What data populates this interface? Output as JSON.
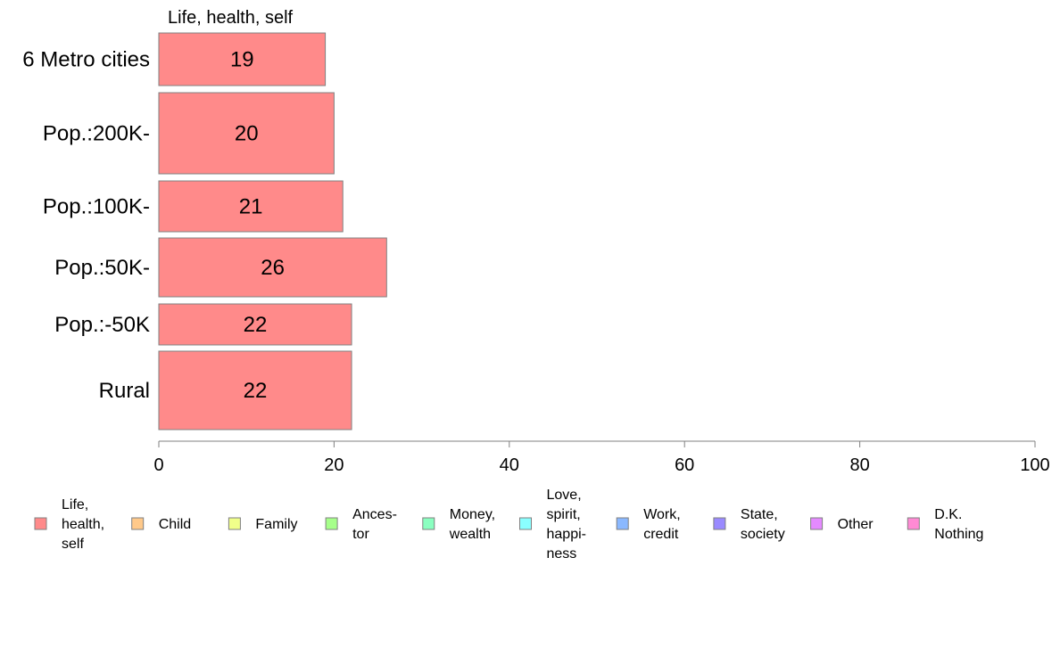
{
  "chart_data": {
    "type": "bar",
    "orientation": "horizontal",
    "title": "",
    "series_title": "Life, health, self",
    "categories": [
      "6 Metro cities",
      "Pop.:200K-",
      "Pop.:100K-",
      "Pop.:50K-",
      "Pop.:-50K",
      "Rural"
    ],
    "series": [
      {
        "name": "Life, health, self",
        "values": [
          19,
          20,
          21,
          26,
          22,
          22
        ],
        "color": "#ff8a8a"
      }
    ],
    "value_labels": [
      "19",
      "20",
      "21",
      "26",
      "22",
      "22"
    ],
    "xlim": [
      0,
      100
    ],
    "xticks": [
      "0",
      "20",
      "40",
      "60",
      "80",
      "100"
    ],
    "xlabel": "",
    "ylabel": "",
    "grid": false,
    "legend_position": "bottom",
    "legend": [
      {
        "lines": [
          "Life,",
          "health,",
          "self"
        ],
        "color": "#ff8a8a"
      },
      {
        "lines": [
          "Child"
        ],
        "color": "#ffc98a"
      },
      {
        "lines": [
          "Family"
        ],
        "color": "#f0ff8a"
      },
      {
        "lines": [
          "Ances-",
          "tor"
        ],
        "color": "#a6ff8a"
      },
      {
        "lines": [
          "Money,",
          "wealth"
        ],
        "color": "#8affc0"
      },
      {
        "lines": [
          "Love,",
          "spirit,",
          "happi-",
          "ness"
        ],
        "color": "#8affff"
      },
      {
        "lines": [
          "Work,",
          "credit"
        ],
        "color": "#8ab8ff"
      },
      {
        "lines": [
          "State,",
          "society"
        ],
        "color": "#9a8aff"
      },
      {
        "lines": [
          "Other"
        ],
        "color": "#e48aff"
      },
      {
        "lines": [
          "D.K.",
          "Nothing"
        ],
        "color": "#ff8ad4"
      }
    ]
  }
}
